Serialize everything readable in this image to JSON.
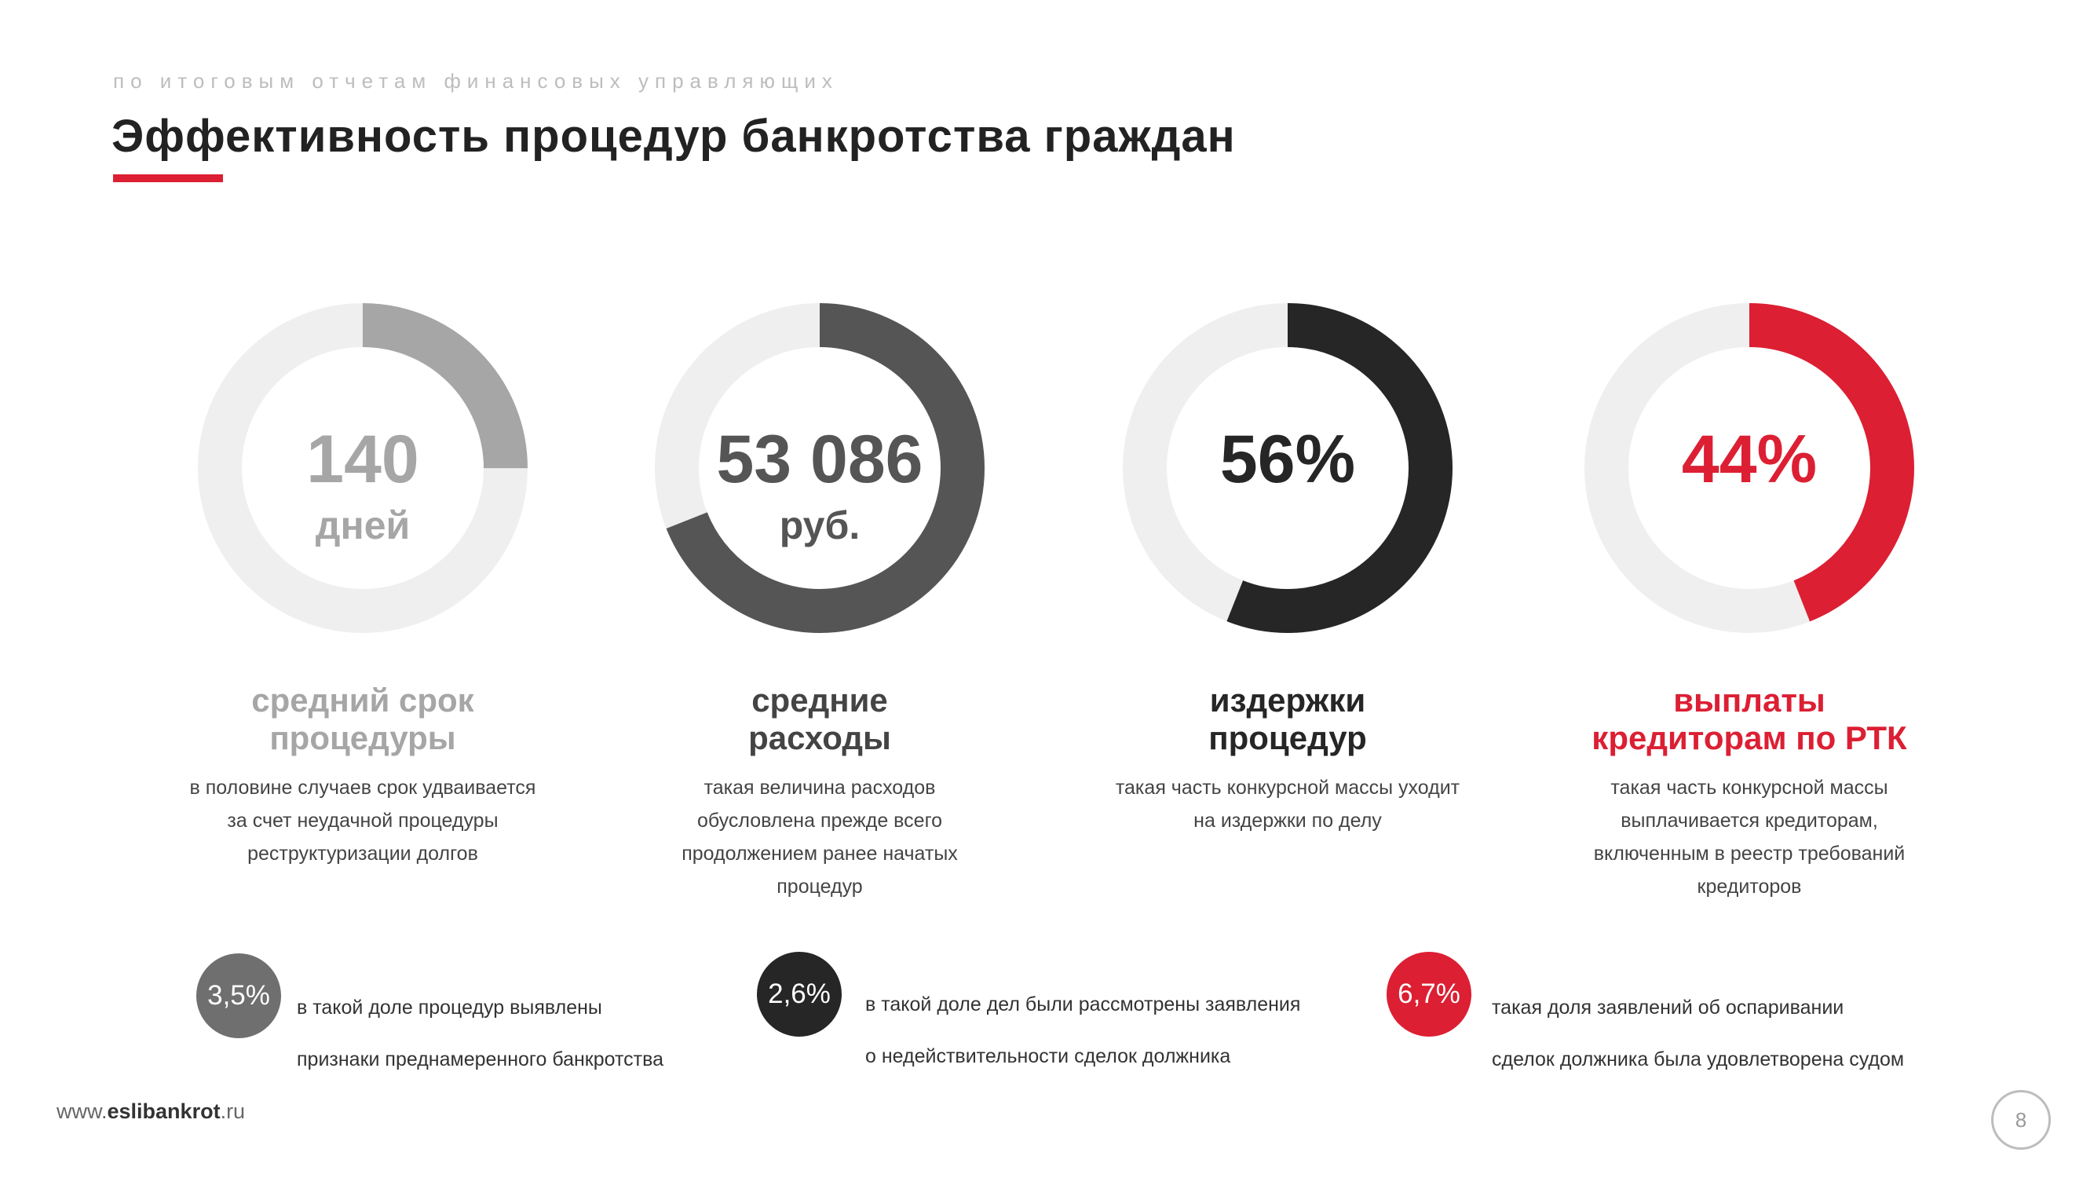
{
  "header": {
    "subtitle": "по итоговым отчетам финансовых управляющих",
    "title": "Эффективность процедур банкротства граждан"
  },
  "colors": {
    "accent": "#dc1f33",
    "track": "#efefef",
    "light_gray": "#a6a6a6",
    "dark_gray": "#555555",
    "black": "#262626",
    "red": "#dc1f33"
  },
  "chart_data": [
    {
      "type": "pie",
      "value": "140",
      "unit": "дней",
      "fraction": 0.25,
      "color": "#a6a6a6",
      "label": "средний срок процедуры",
      "label_lines": [
        "средний срок",
        "процедуры"
      ],
      "description_lines": [
        "в половине случаев срок удваивается",
        "за счет неудачной процедуры",
        "реструктуризации долгов"
      ]
    },
    {
      "type": "pie",
      "value": "53 086",
      "unit": "руб.",
      "fraction": 0.69,
      "color": "#555555",
      "label": "средние расходы",
      "label_lines": [
        "средние",
        "расходы"
      ],
      "description_lines": [
        "такая величина расходов",
        "обусловлена прежде всего",
        "продолжением ранее начатых",
        "процедур"
      ]
    },
    {
      "type": "pie",
      "value": "56%",
      "unit": "",
      "fraction": 0.56,
      "color": "#262626",
      "label": "издержки процедур",
      "label_lines": [
        "издержки",
        "процедур"
      ],
      "description_lines": [
        "такая часть конкурсной массы уходит",
        "на издержки по делу"
      ]
    },
    {
      "type": "pie",
      "value": "44%",
      "unit": "",
      "fraction": 0.44,
      "color": "#dc1f33",
      "label": "выплаты кредиторам по РТК",
      "label_lines": [
        "выплаты",
        "кредиторам по РТК"
      ],
      "description_lines": [
        "такая часть конкурсной массы",
        "выплачивается кредиторам,",
        "включенным в реестр требований",
        "кредиторов"
      ]
    }
  ],
  "badges": [
    {
      "value": "3,5%",
      "color": "#6f6f6f",
      "text_lines": [
        "в такой доле процедур выявлены",
        "признаки преднамеренного банкротства"
      ]
    },
    {
      "value": "2,6%",
      "color": "#262626",
      "text_lines": [
        "в такой доле дел были рассмотрены заявления",
        "о недействительности сделок должника"
      ]
    },
    {
      "value": "6,7%",
      "color": "#dc1f33",
      "text_lines": [
        "такая доля заявлений об оспаривании",
        "сделок должника была удовлетворена судом"
      ]
    }
  ],
  "footer": {
    "site_prefix": "www.",
    "site_bold": "eslibankrot",
    "site_suffix": ".ru",
    "page_number": "8"
  }
}
